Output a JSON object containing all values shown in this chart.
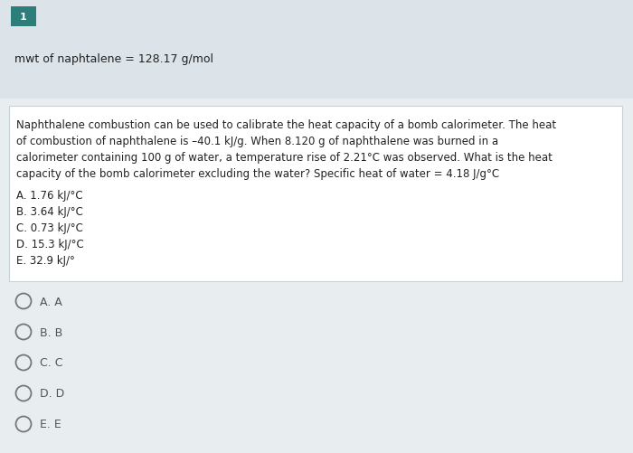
{
  "background_color": "#e8edf0",
  "question_number": "1",
  "question_number_bg": "#2d7d7a",
  "header_bg": "#dce4ea",
  "header_text": "mwt of naphtalene = 128.17 g/mol",
  "question_box_bg": "#ffffff",
  "question_box_border": "#c8d0d8",
  "question_lines": [
    "Naphthalene combustion can be used to calibrate the heat capacity of a bomb calorimeter. The heat",
    "of combustion of naphthalene is –40.1 kJ/g. When 8.120 g of naphthalene was burned in a",
    "calorimeter containing 100 g of water, a temperature rise of 2.21°C was observed. What is the heat",
    "capacity of the bomb calorimeter excluding the water? Specific heat of water = 4.18 J/g°C"
  ],
  "choices": [
    "A. 1.76 kJ/°C",
    "B. 3.64 kJ/°C",
    "C. 0.73 kJ/°C",
    "D. 15.3 kJ/°C",
    "E. 32.9 kJ/°"
  ],
  "answer_choices": [
    "A. A",
    "B. B",
    "C. C",
    "D. D",
    "E. E"
  ],
  "text_color": "#222222",
  "light_text_color": "#555555",
  "font_size_main": 8.5,
  "font_size_badge": 8.0,
  "font_size_header": 9.0,
  "font_size_answers": 9.0,
  "circle_color": "#777777",
  "fig_width": 7.0,
  "fig_height": 5.02,
  "dpi": 100
}
